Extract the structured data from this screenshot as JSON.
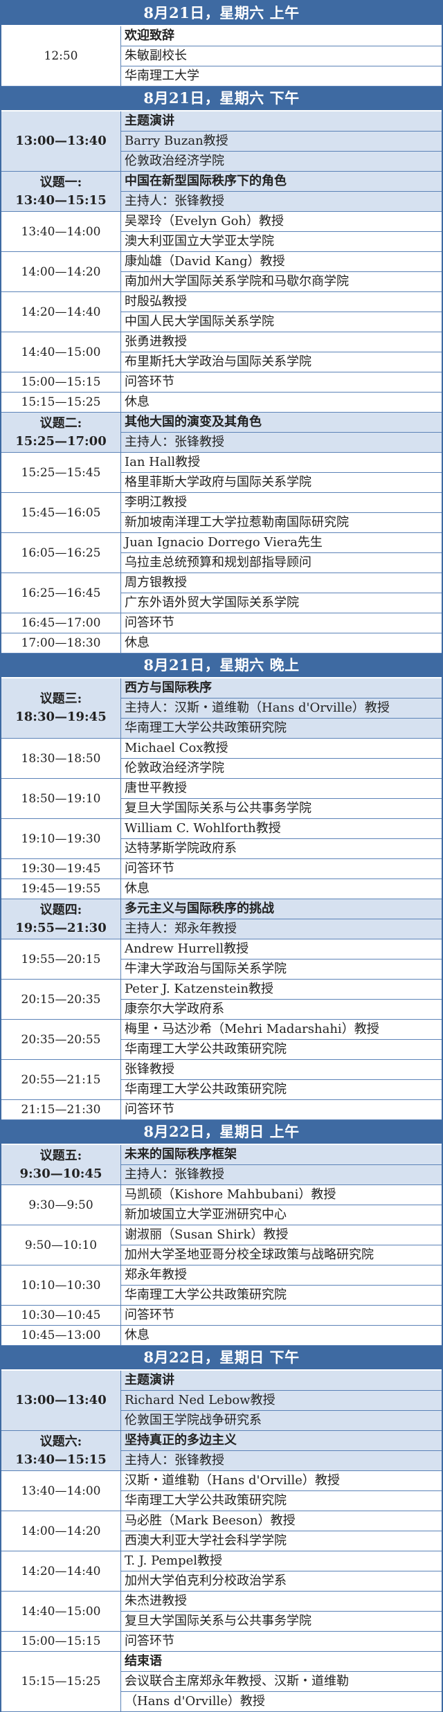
{
  "sections": [
    {
      "header": "8月21日，星期六 上午",
      "rows": [
        {
          "time": "12:50",
          "lines": [
            "欢迎致辞",
            "朱敏副校长",
            "华南理工大学"
          ],
          "bold_first": true
        }
      ]
    },
    {
      "header": "8月21日，星期六 下午",
      "rows": [
        {
          "time": "13:00—13:40",
          "time_bold": true,
          "lines": [
            "主题演讲",
            "Barry Buzan教授",
            "伦敦政治经济学院"
          ],
          "bold_first": true,
          "topic": true
        },
        {
          "time_label": "议题一:",
          "time": "13:40—15:15",
          "lines": [
            "中国在新型国际秩序下的角色",
            "主持人：张锋教授"
          ],
          "bold_first": true,
          "topic": true
        },
        {
          "time": "13:40—14:00",
          "lines": [
            "吴翠玲（Evelyn Goh）教授",
            "澳大利亚国立大学亚太学院"
          ]
        },
        {
          "time": "14:00—14:20",
          "lines": [
            "康灿雄（David Kang）教授",
            "南加州大学国际关系学院和马歇尔商学院"
          ]
        },
        {
          "time": "14:20—14:40",
          "lines": [
            "时殷弘教授",
            "中国人民大学国际关系学院"
          ]
        },
        {
          "time": "14:40—15:00",
          "lines": [
            "张勇进教授",
            "布里斯托大学政治与国际关系学院"
          ]
        },
        {
          "time": "15:00—15:15",
          "lines": [
            "问答环节"
          ]
        },
        {
          "time": "15:15—15:25",
          "lines": [
            "休息"
          ]
        },
        {
          "time_label": "议题二:",
          "time": "15:25—17:00",
          "lines": [
            "其他大国的演变及其角色",
            "主持人：张锋教授"
          ],
          "bold_first": true,
          "topic": true
        },
        {
          "time": "15:25—15:45",
          "lines": [
            "Ian Hall教授",
            "格里菲斯大学政府与国际关系学院"
          ]
        },
        {
          "time": "15:45—16:05",
          "lines": [
            "李明江教授",
            "新加坡南洋理工大学拉惹勒南国际研究院"
          ]
        },
        {
          "time": "16:05—16:25",
          "lines": [
            "Juan Ignacio Dorrego Viera先生",
            "乌拉圭总统预算和规划部指导顾问"
          ]
        },
        {
          "time": "16:25—16:45",
          "lines": [
            "周方银教授",
            "广东外语外贸大学国际关系学院"
          ]
        },
        {
          "time": "16:45—17:00",
          "lines": [
            "问答环节"
          ]
        },
        {
          "time": "17:00—18:30",
          "lines": [
            "休息"
          ]
        }
      ]
    },
    {
      "header": "8月21日，星期六 晚上",
      "rows": [
        {
          "time_label": "议题三:",
          "time": "18:30—19:45",
          "lines": [
            "西方与国际秩序",
            "主持人：汉斯・道维勒（Hans d'Orville）教授",
            "华南理工大学公共政策研究院"
          ],
          "bold_first": true,
          "topic": true
        },
        {
          "time": "18:30—18:50",
          "lines": [
            "Michael Cox教授",
            "伦敦政治经济学院"
          ]
        },
        {
          "time": "18:50—19:10",
          "lines": [
            "唐世平教授",
            "复旦大学国际关系与公共事务学院"
          ]
        },
        {
          "time": "19:10—19:30",
          "lines": [
            "William C. Wohlforth教授",
            "达特茅斯学院政府系"
          ]
        },
        {
          "time": "19:30—19:45",
          "lines": [
            "问答环节"
          ]
        },
        {
          "time": "19:45—19:55",
          "lines": [
            "休息"
          ]
        },
        {
          "time_label": "议题四:",
          "time": "19:55—21:30",
          "lines": [
            "多元主义与国际秩序的挑战",
            "主持人：郑永年教授"
          ],
          "bold_first": true,
          "topic": true
        },
        {
          "time": "19:55—20:15",
          "lines": [
            "Andrew Hurrell教授",
            "牛津大学政治与国际关系学院"
          ]
        },
        {
          "time": "20:15—20:35",
          "lines": [
            "Peter J. Katzenstein教授",
            "康奈尔大学政府系"
          ]
        },
        {
          "time": "20:35—20:55",
          "lines": [
            "梅里・马达沙希（Mehri Madarshahi）教授",
            "华南理工大学公共政策研究院"
          ]
        },
        {
          "time": "20:55—21:15",
          "lines": [
            "张锋教授",
            "华南理工大学公共政策研究院"
          ]
        },
        {
          "time": "21:15—21:30",
          "lines": [
            "问答环节"
          ]
        }
      ]
    },
    {
      "header": "8月22日，星期日 上午",
      "rows": [
        {
          "time_label": "议题五:",
          "time": "9:30—10:45",
          "lines": [
            "未来的国际秩序框架",
            "主持人：张锋教授"
          ],
          "bold_first": true,
          "topic": true
        },
        {
          "time": "9:30—9:50",
          "lines": [
            "马凯硕（Kishore Mahbubani）教授",
            "新加坡国立大学亚洲研究中心"
          ]
        },
        {
          "time": "9:50—10:10",
          "lines": [
            "谢淑丽（Susan Shirk）教授",
            "加州大学圣地亚哥分校全球政策与战略研究院"
          ]
        },
        {
          "time": "10:10—10:30",
          "lines": [
            "郑永年教授",
            "华南理工大学公共政策研究院"
          ]
        },
        {
          "time": "10:30—10:45",
          "lines": [
            "问答环节"
          ]
        },
        {
          "time": "10:45—13:00",
          "lines": [
            "休息"
          ]
        }
      ]
    },
    {
      "header": "8月22日，星期日 下午",
      "rows": [
        {
          "time": "13:00—13:40",
          "lines": [
            "主题演讲",
            "Richard Ned Lebow教授",
            "伦敦国王学院战争研究系"
          ],
          "bold_first": true,
          "topic": true
        },
        {
          "time_label": "议题六:",
          "time": "13:40—15:15",
          "lines": [
            "坚持真正的多边主义",
            "主持人：张锋教授"
          ],
          "bold_first": true,
          "topic": true
        },
        {
          "time": "13:40—14:00",
          "lines": [
            "汉斯・道维勒（Hans d'Orville）教授",
            "华南理工大学公共政策研究院"
          ]
        },
        {
          "time": "14:00—14:20",
          "lines": [
            "马必胜（Mark Beeson）教授",
            "西澳大利亚大学社会科学学院"
          ]
        },
        {
          "time": "14:20—14:40",
          "lines": [
            "T. J. Pempel教授",
            "加州大学伯克利分校政治学系"
          ]
        },
        {
          "time": "14:40—15:00",
          "lines": [
            "朱杰进教授",
            "复旦大学国际关系与公共事务学院"
          ]
        },
        {
          "time": "15:00—15:15",
          "lines": [
            "问答环节"
          ]
        },
        {
          "time": "15:15—15:25",
          "lines": [
            "结束语",
            "会议联合主席郑永年教授、汉斯・道维勒",
            "（Hans d'Orville）教授"
          ],
          "bold_first": true
        }
      ]
    }
  ]
}
